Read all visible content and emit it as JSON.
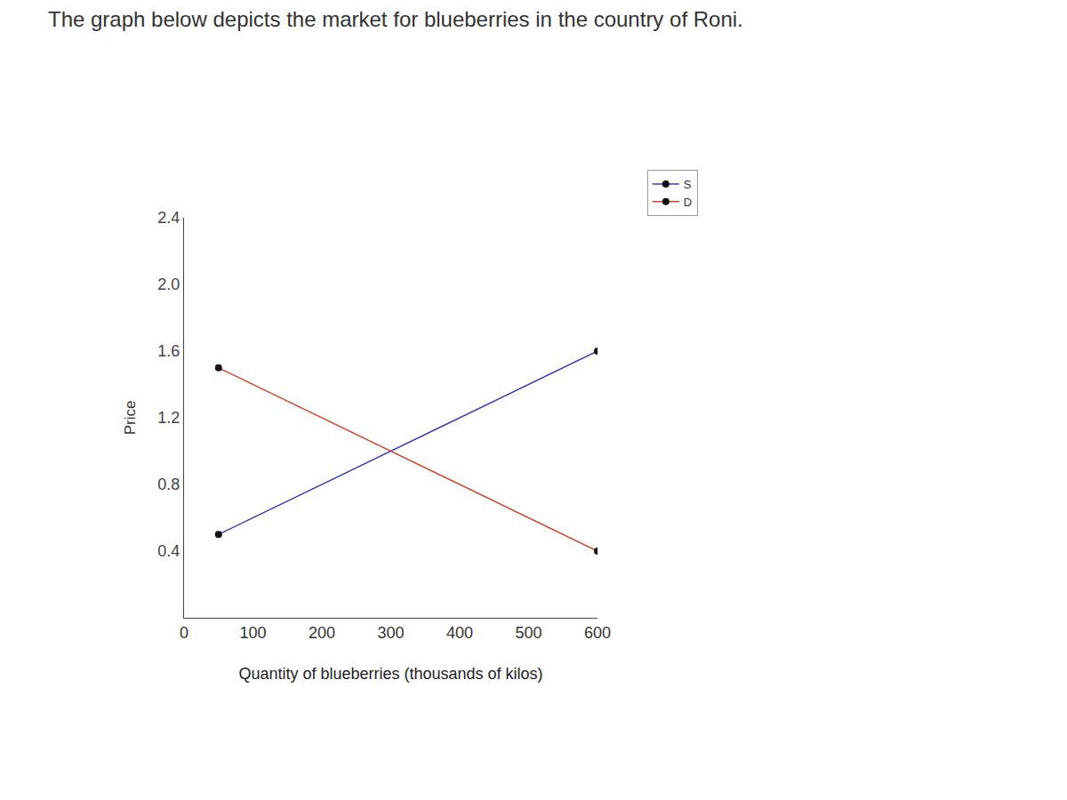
{
  "chart_data": {
    "type": "line",
    "title": "The graph below depicts the market for blueberries in the country of Roni.",
    "x_label": "Quantity of blueberries (thousands of kilos)",
    "y_label": "Price",
    "series": [
      {
        "name": "S",
        "color": "#3a3ab5",
        "marker": "circle",
        "x": [
          50,
          600
        ],
        "values": [
          0.5,
          1.6
        ]
      },
      {
        "name": "D",
        "color": "#d2432e",
        "marker": "circle",
        "x": [
          50,
          600
        ],
        "values": [
          1.5,
          0.4
        ]
      }
    ],
    "xlim": [
      0,
      600
    ],
    "xticks": [
      0,
      100,
      200,
      300,
      400,
      500,
      600
    ],
    "ylim": [
      0,
      2.4
    ],
    "yticks": [
      0.4,
      0.8,
      1.2,
      {
        "value": 2,
        "label": "2.0"
      },
      2.4,
      {
        "value": 1.6,
        "label": "1.6"
      }
    ],
    "grid": false,
    "legend": "top right"
  }
}
